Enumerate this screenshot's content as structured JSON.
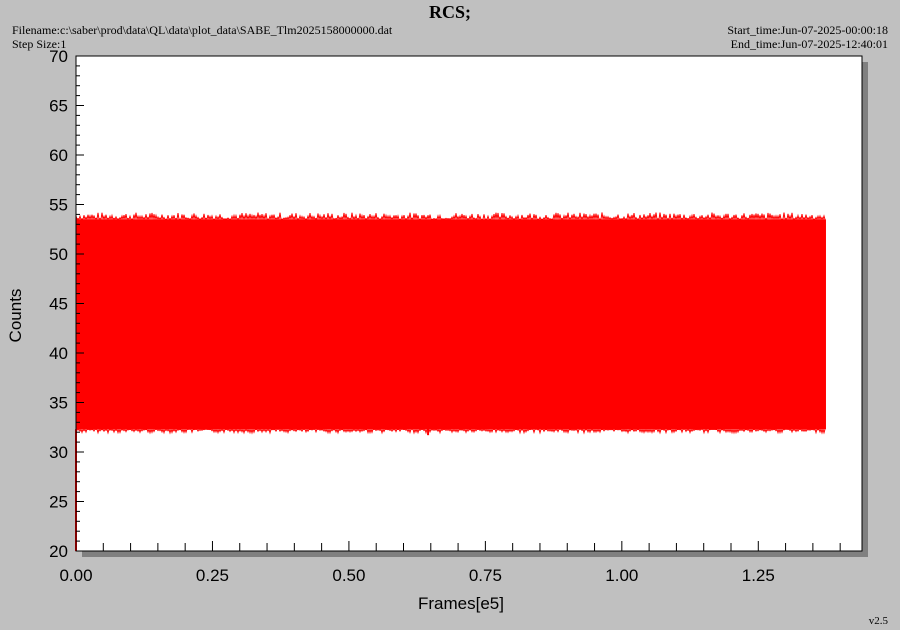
{
  "header": {
    "title": "RCS;",
    "filename": "Filename:c:\\saber\\prod\\data\\QL\\data\\plot_data\\SABE_Tlm2025158000000.dat",
    "step_size": "Step Size:1",
    "start_time": "Start_time:Jun-07-2025-00:00:18",
    "end_time": "End_time:Jun-07-2025-12:40:01"
  },
  "footer": {
    "version": "v2.5"
  },
  "colors": {
    "background": "#c0c0c0",
    "plot_area": "#ffffff",
    "series": "#ff0000"
  },
  "chart_data": {
    "type": "line",
    "xlabel": "Frames[e5]",
    "ylabel": "Counts",
    "xlim": [
      0.0,
      1.44
    ],
    "ylim": [
      20,
      70
    ],
    "xticks": [
      {
        "value": 0.0,
        "label": "0.00"
      },
      {
        "value": 0.25,
        "label": "0.25"
      },
      {
        "value": 0.5,
        "label": "0.50"
      },
      {
        "value": 0.75,
        "label": "0.75"
      },
      {
        "value": 1.0,
        "label": "1.00"
      },
      {
        "value": 1.25,
        "label": "1.25"
      }
    ],
    "yticks": [
      {
        "value": 20,
        "label": "20"
      },
      {
        "value": 25,
        "label": "25"
      },
      {
        "value": 30,
        "label": "30"
      },
      {
        "value": 35,
        "label": "35"
      },
      {
        "value": 40,
        "label": "40"
      },
      {
        "value": 45,
        "label": "45"
      },
      {
        "value": 50,
        "label": "50"
      },
      {
        "value": 55,
        "label": "55"
      },
      {
        "value": 60,
        "label": "60"
      },
      {
        "value": 65,
        "label": "65"
      },
      {
        "value": 70,
        "label": "70"
      }
    ],
    "series": [
      {
        "x_range": [
          0.0,
          1.374
        ],
        "typical_min": 32.3,
        "typical_max": 53.5,
        "extreme_min": 31.7,
        "extreme_max": 54.2,
        "initial_value": 20.0
      }
    ],
    "grid": false
  }
}
